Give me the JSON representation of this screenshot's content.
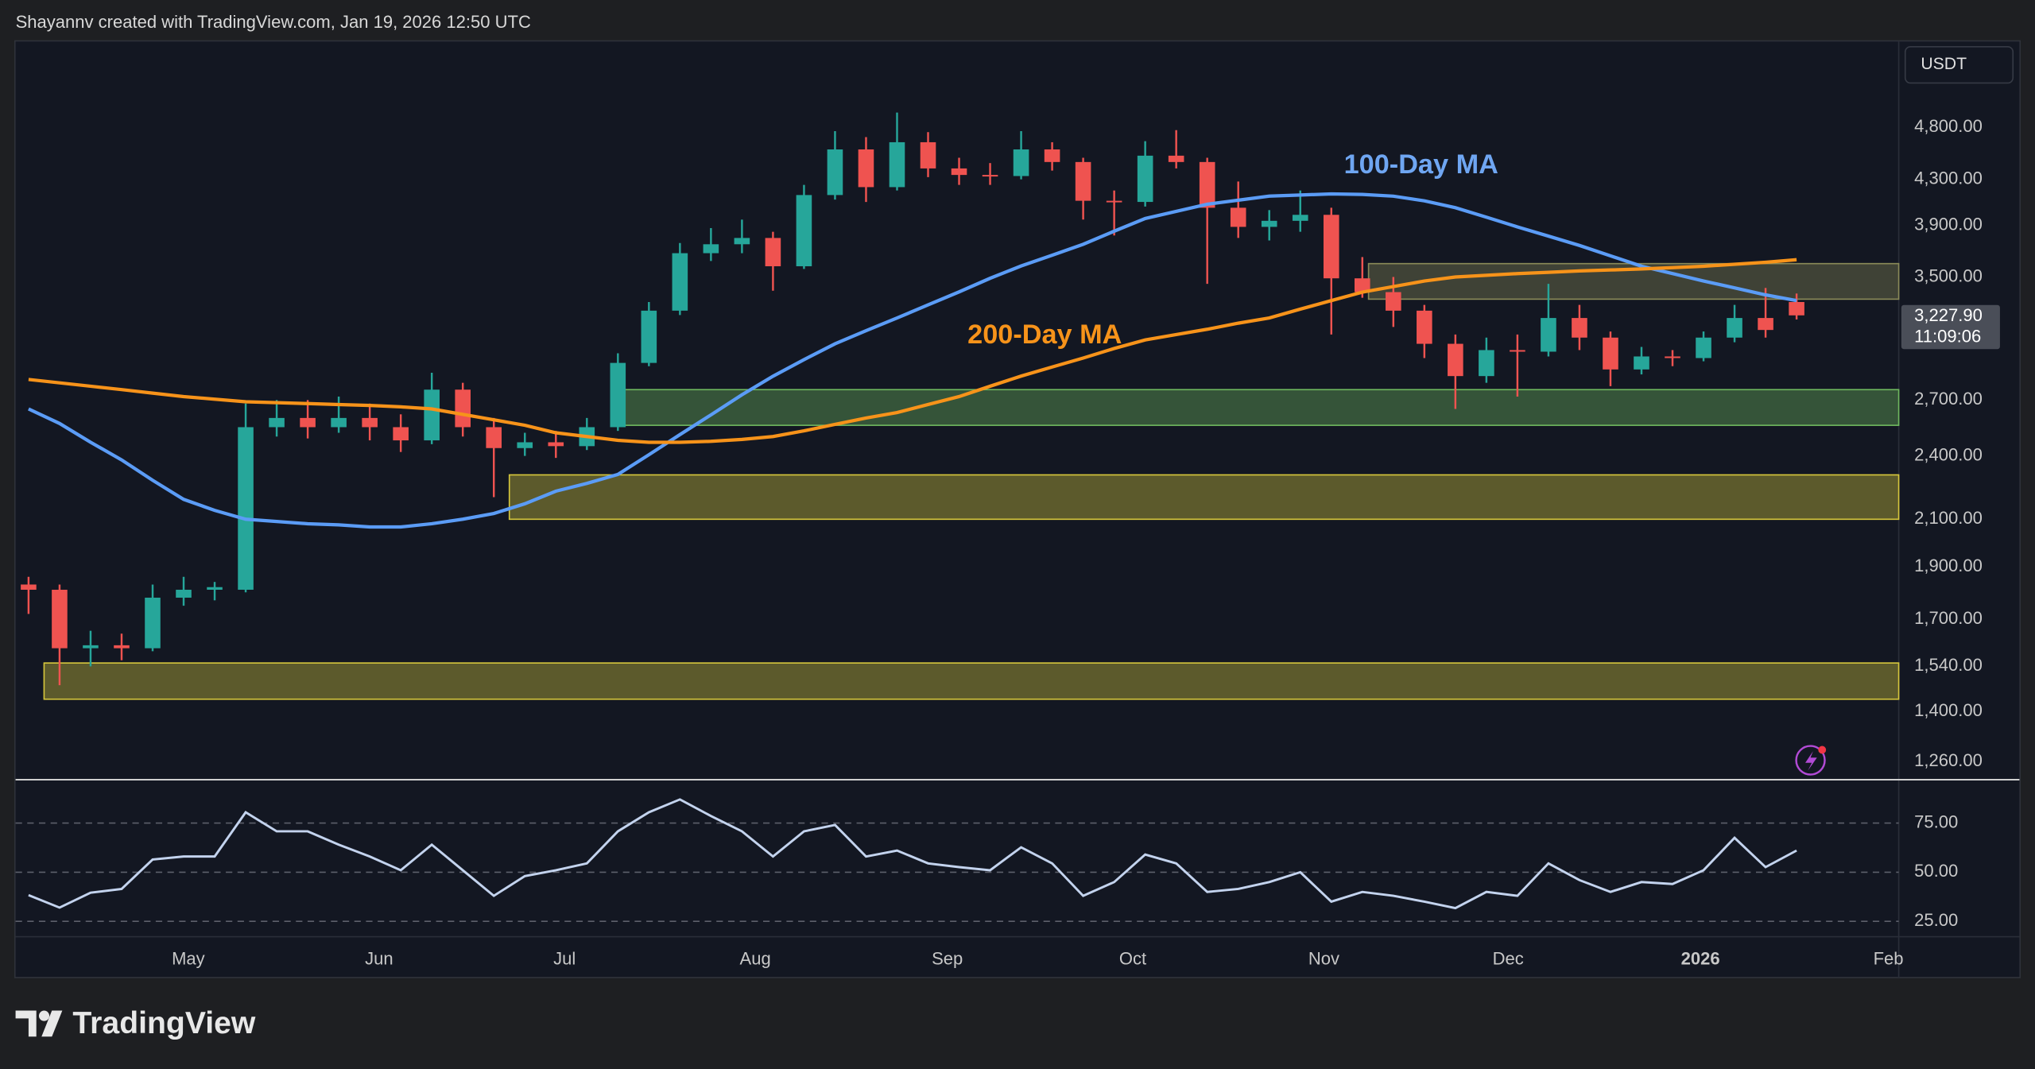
{
  "header": {
    "credit": "Shayannv created with TradingView.com, Jan 19, 2026 12:50 UTC"
  },
  "footer": {
    "logo": "TradingView"
  },
  "chart_data": [
    {
      "type": "candlestick",
      "currency": "USDT",
      "categories": [
        null,
        null,
        null,
        null,
        null,
        null,
        null,
        null,
        null,
        null,
        null,
        null,
        null,
        null,
        null,
        null,
        null,
        null,
        null,
        null,
        null,
        null,
        null,
        null,
        null,
        null,
        null,
        null,
        null,
        null,
        null,
        null,
        null,
        null,
        null,
        null,
        null,
        null,
        null,
        null,
        null,
        null,
        null,
        null,
        null,
        null,
        null,
        null,
        null,
        null,
        null,
        null,
        null,
        null,
        null,
        null,
        null,
        null
      ],
      "open": [
        1830,
        1810,
        1600,
        1610,
        1600,
        1780,
        1810,
        1810,
        2550,
        2600,
        2550,
        2600,
        2550,
        2480,
        2760,
        2550,
        2440,
        2470,
        2450,
        2550,
        2920,
        3260,
        3680,
        3750,
        3800,
        3580,
        4160,
        4580,
        4230,
        4650,
        4400,
        4340,
        4330,
        4580,
        4460,
        4110,
        4100,
        4520,
        4460,
        4050,
        3890,
        3940,
        3990,
        3490,
        3390,
        3260,
        3040,
        2840,
        3000,
        2990,
        3210,
        3080,
        2880,
        2960,
        2950,
        3080,
        3210,
        3320
      ],
      "high": [
        1860,
        1830,
        1660,
        1650,
        1830,
        1860,
        1840,
        2680,
        2700,
        2700,
        2720,
        2680,
        2620,
        2860,
        2800,
        2600,
        2520,
        2530,
        2600,
        2980,
        3320,
        3760,
        3880,
        3950,
        3850,
        4250,
        4760,
        4700,
        4950,
        4750,
        4500,
        4450,
        4760,
        4650,
        4500,
        4200,
        4660,
        4770,
        4500,
        4280,
        4030,
        4200,
        4050,
        3650,
        3500,
        3300,
        3100,
        3080,
        3100,
        3450,
        3300,
        3120,
        3020,
        3000,
        3120,
        3300,
        3420,
        3380
      ],
      "low": [
        1720,
        1480,
        1540,
        1560,
        1590,
        1750,
        1770,
        1800,
        2500,
        2490,
        2520,
        2480,
        2420,
        2460,
        2500,
        2200,
        2400,
        2390,
        2430,
        2530,
        2900,
        3230,
        3620,
        3680,
        3400,
        3560,
        4120,
        4100,
        4200,
        4320,
        4250,
        4250,
        4300,
        4380,
        3950,
        3820,
        4060,
        4400,
        3450,
        3800,
        3780,
        3850,
        3100,
        3350,
        3150,
        2950,
        2650,
        2800,
        2720,
        2960,
        3000,
        2780,
        2850,
        2900,
        2930,
        3050,
        3080,
        3200
      ],
      "close": [
        1810,
        1600,
        1610,
        1600,
        1780,
        1810,
        1820,
        2550,
        2600,
        2550,
        2600,
        2550,
        2480,
        2760,
        2550,
        2440,
        2470,
        2450,
        2550,
        2920,
        3260,
        3680,
        3750,
        3800,
        3580,
        4160,
        4580,
        4230,
        4650,
        4400,
        4340,
        4330,
        4580,
        4460,
        4110,
        4100,
        4520,
        4460,
        4050,
        3890,
        3940,
        3990,
        3490,
        3390,
        3260,
        3040,
        2840,
        3000,
        2990,
        3210,
        3080,
        2880,
        2960,
        2950,
        3080,
        3210,
        3130,
        3227.9
      ],
      "up_color": "#26a69a",
      "down_color": "#ef5350",
      "series": [
        {
          "name": "100-Day MA",
          "color": "#5b9cf6",
          "values": [
            2650,
            2570,
            2470,
            2380,
            2280,
            2190,
            2140,
            2100,
            2090,
            2080,
            2075,
            2066,
            2066,
            2080,
            2100,
            2126,
            2170,
            2228,
            2265,
            2308,
            2406,
            2510,
            2617,
            2730,
            2839,
            2940,
            3040,
            3125,
            3210,
            3300,
            3392,
            3490,
            3582,
            3665,
            3750,
            3855,
            3960,
            4020,
            4080,
            4115,
            4150,
            4160,
            4170,
            4165,
            4150,
            4110,
            4050,
            3970,
            3890,
            3815,
            3740,
            3660,
            3580,
            3525,
            3470,
            3420,
            3370,
            3330
          ]
        },
        {
          "name": "200-Day MA",
          "color": "#f7931a",
          "values": [
            2820,
            2800,
            2780,
            2760,
            2740,
            2720,
            2705,
            2690,
            2685,
            2680,
            2675,
            2670,
            2662,
            2650,
            2620,
            2590,
            2560,
            2520,
            2500,
            2480,
            2470,
            2470,
            2475,
            2485,
            2500,
            2530,
            2565,
            2600,
            2630,
            2675,
            2720,
            2780,
            2840,
            2895,
            2950,
            3010,
            3065,
            3100,
            3135,
            3175,
            3210,
            3270,
            3330,
            3390,
            3430,
            3470,
            3500,
            3512,
            3525,
            3535,
            3545,
            3552,
            3560,
            3570,
            3580,
            3595,
            3610,
            3630
          ]
        }
      ],
      "zones": [
        {
          "start": 43.2,
          "low": 3340,
          "high": 3600,
          "color": "#8a8a58"
        },
        {
          "start": 18.8,
          "low": 2560,
          "high": 2760,
          "color": "#6fb85f"
        },
        {
          "start": 15.5,
          "low": 2100,
          "high": 2306,
          "color": "#d6c73c"
        },
        {
          "start": 0.5,
          "low": 1437,
          "high": 1551,
          "color": "#d6c73c"
        }
      ],
      "log_scale": true,
      "ylim": [
        1216,
        5750
      ],
      "yticks": [
        {
          "value": 1260,
          "label": "1,260.00"
        },
        {
          "value": 1400,
          "label": "1,400.00"
        },
        {
          "value": 1540,
          "label": "1,540.00"
        },
        {
          "value": 1700,
          "label": "1,700.00"
        },
        {
          "value": 1900,
          "label": "1,900.00"
        },
        {
          "value": 2100,
          "label": "2,100.00"
        },
        {
          "value": 2400,
          "label": "2,400.00"
        },
        {
          "value": 2700,
          "label": "2,700.00"
        },
        {
          "value": 3500,
          "label": "3,500.00"
        },
        {
          "value": 3900,
          "label": "3,900.00"
        },
        {
          "value": 4300,
          "label": "4,300.00"
        },
        {
          "value": 4800,
          "label": "4,800.00"
        }
      ],
      "xticks": [
        {
          "value": 5.15,
          "label": "May"
        },
        {
          "value": 11.3,
          "label": "Jun"
        },
        {
          "value": 17.28,
          "label": "Jul"
        },
        {
          "value": 23.43,
          "label": "Aug"
        },
        {
          "value": 29.62,
          "label": "Sep"
        },
        {
          "value": 35.6,
          "label": "Oct"
        },
        {
          "value": 41.76,
          "label": "Nov"
        },
        {
          "value": 47.7,
          "label": "Dec"
        },
        {
          "value": 53.9,
          "label": "2026",
          "bold": true
        },
        {
          "value": 59.96,
          "label": "Feb"
        }
      ],
      "last_price": {
        "value": 3227.9,
        "label": "3,227.90"
      },
      "countdown": "11:09:06"
    },
    {
      "type": "line",
      "color": "#c3d3ee",
      "values": [
        38.3,
        32,
        39.6,
        41.5,
        56.5,
        58,
        58,
        80.5,
        70.8,
        70.8,
        64,
        58,
        51,
        64,
        51,
        38,
        48,
        51,
        54.5,
        70.8,
        80.5,
        87,
        78.6,
        70.8,
        58,
        70.8,
        74,
        58,
        61,
        54.5,
        52.6,
        51,
        62.7,
        54.5,
        38,
        45,
        59,
        54.5,
        40,
        41.5,
        45,
        50,
        35,
        40,
        38,
        35,
        31.7,
        40,
        38,
        54.5,
        46,
        40,
        45,
        44,
        51,
        67.5,
        52.6,
        61
      ],
      "ylim": [
        17.2,
        96.4
      ],
      "yticks": [
        {
          "value": 25,
          "label": "25.00"
        },
        {
          "value": 50,
          "label": "50.00"
        },
        {
          "value": 75,
          "label": "75.00"
        }
      ],
      "grid": "dashed"
    }
  ]
}
